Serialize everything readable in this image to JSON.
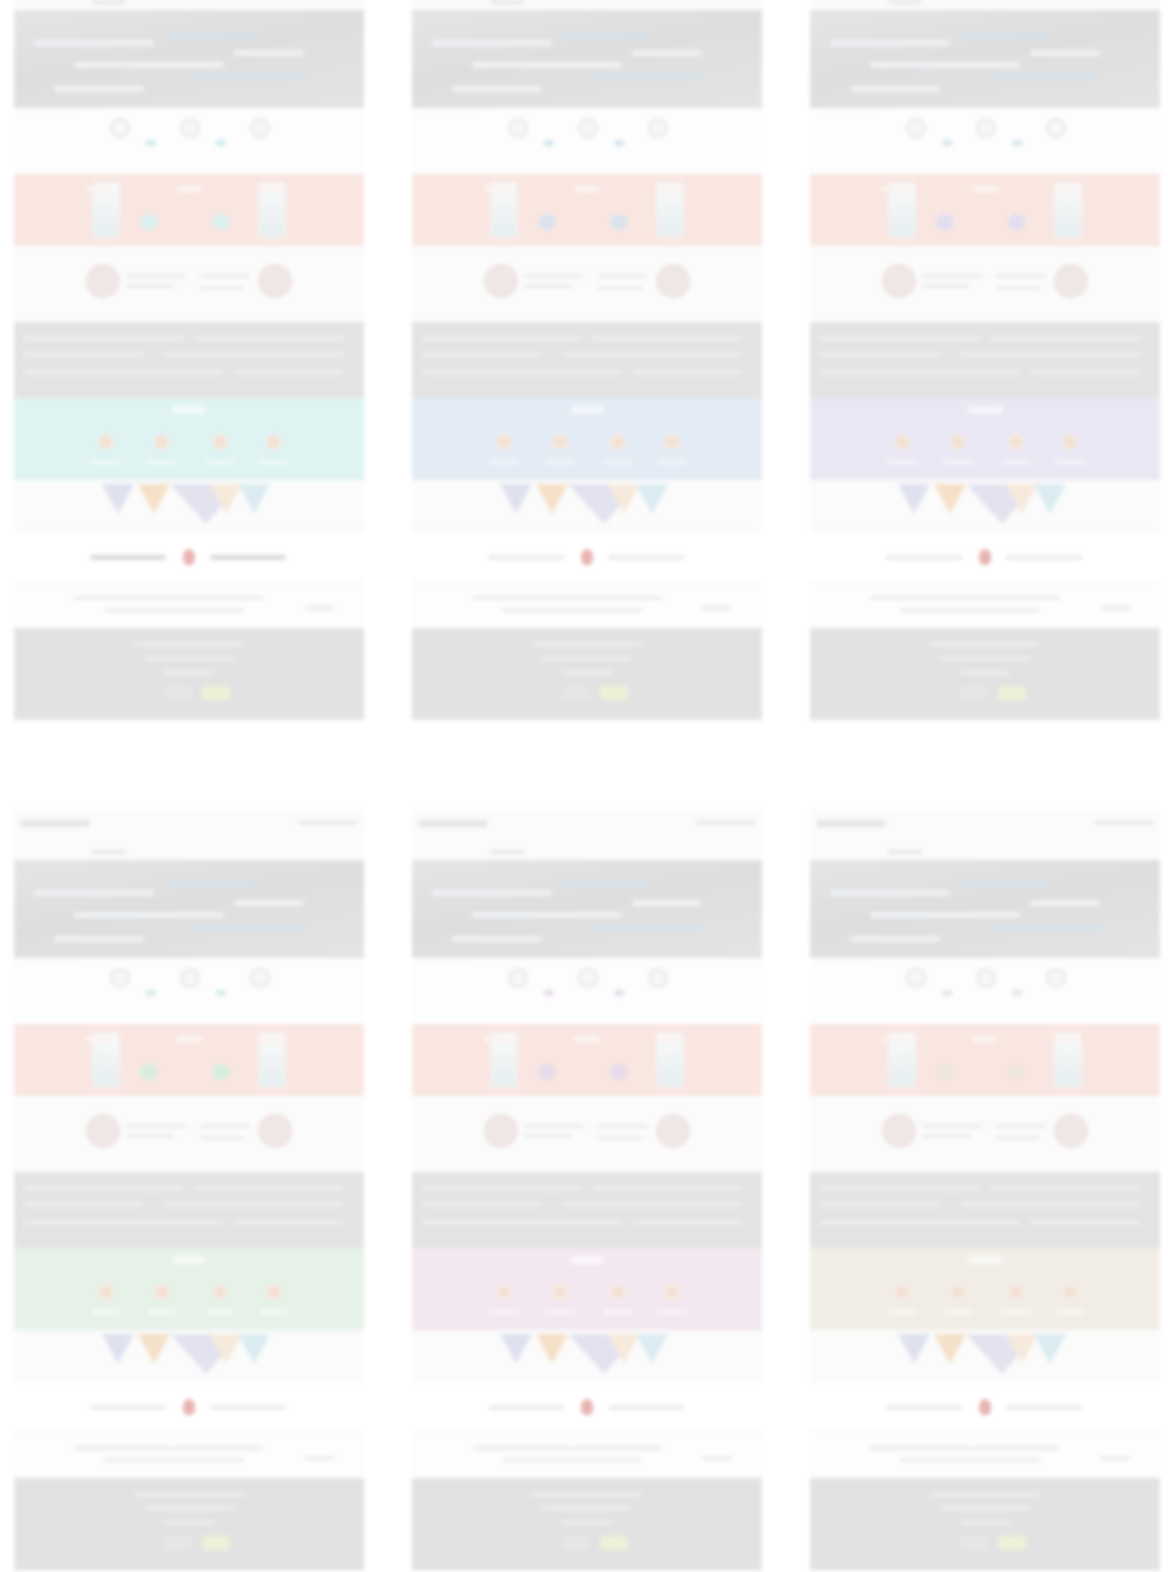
{
  "page": {
    "columns": 3,
    "rows": 2,
    "description_text": ""
  },
  "variants": [
    {
      "id": "top-left",
      "feature_color": "#def3f2",
      "icon_accent": "#d0ecee",
      "chip_color": "#dbefef",
      "cta_line": "#d8d8d8",
      "footer_btn": "#eef0d8"
    },
    {
      "id": "top-middle",
      "feature_color": "#e3ebf4",
      "icon_accent": "#d6e5ee",
      "chip_color": "#dbe3ee",
      "cta_line": "#ececec",
      "footer_btn": "#eef0d8"
    },
    {
      "id": "top-right",
      "feature_color": "#e9e7f3",
      "icon_accent": "#d9e6ec",
      "chip_color": "#e1def0",
      "cta_line": "#ececec",
      "footer_btn": "#eef0d8"
    },
    {
      "id": "bottom-left",
      "feature_color": "#e6f1e8",
      "icon_accent": "#d6ede0",
      "chip_color": "#d9eedf",
      "cta_line": "#ececec",
      "footer_btn": "#eef0d8"
    },
    {
      "id": "bottom-middle",
      "feature_color": "#f3e8f0",
      "icon_accent": "#e7dcea",
      "chip_color": "#e8dcec",
      "cta_line": "#ececec",
      "footer_btn": "#eef0d8"
    },
    {
      "id": "bottom-right",
      "feature_color": "#f1ede6",
      "icon_accent": "#e2e8e6",
      "chip_color": "#eee7dd",
      "cta_line": "#ececec",
      "footer_btn": "#eef0d8"
    }
  ]
}
